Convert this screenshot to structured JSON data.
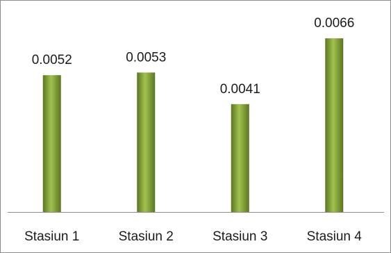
{
  "chart_data": {
    "type": "bar",
    "categories": [
      "Stasiun 1",
      "Stasiun 2",
      "Stasiun 3",
      "Stasiun 4"
    ],
    "values": [
      0.0052,
      0.0053,
      0.0041,
      0.0066
    ],
    "data_labels": [
      "0.0052",
      "0.0053",
      "0.0041",
      "0.0066"
    ],
    "title": "",
    "xlabel": "",
    "ylabel": "",
    "ylim": [
      0,
      0.007
    ],
    "grid": false,
    "legend": "none",
    "bar_color": "#7a9a32",
    "bar_highlight": "#a2c24e",
    "bar_shadow": "#5a7622"
  }
}
